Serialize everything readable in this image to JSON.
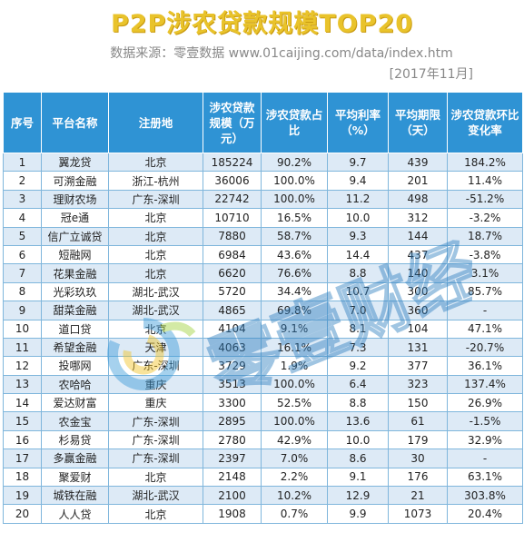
{
  "title": "P2P涉农贷款规模TOP20",
  "source": "数据来源：零壹数据 www.01caijing.com/data/index.htm",
  "date": "[2017年11月]",
  "columns": [
    "序号",
    "平台名称",
    "注册地",
    "涉农贷款规模（万元）",
    "涉农贷款占比",
    "平均利率（%）",
    "平均期限（天）",
    "涉农贷款环比变化率"
  ],
  "rows": [
    [
      "1",
      "翼龙贷",
      "北京",
      "185224",
      "90.2%",
      "9.7",
      "439",
      "184.2%"
    ],
    [
      "2",
      "可溯金融",
      "浙江-杭州",
      "36006",
      "100.0%",
      "9.4",
      "201",
      "11.4%"
    ],
    [
      "3",
      "理财农场",
      "广东-深圳",
      "22742",
      "100.0%",
      "11.2",
      "498",
      "-51.2%"
    ],
    [
      "4",
      "冠e通",
      "北京",
      "10710",
      "16.5%",
      "10.0",
      "312",
      "-3.2%"
    ],
    [
      "5",
      "信广立诚贷",
      "北京",
      "7880",
      "58.7%",
      "9.3",
      "144",
      "18.7%"
    ],
    [
      "6",
      "短融网",
      "北京",
      "6984",
      "43.6%",
      "14.4",
      "437",
      "-3.8%"
    ],
    [
      "7",
      "花果金融",
      "北京",
      "6620",
      "76.6%",
      "8.8",
      "140",
      "3.1%"
    ],
    [
      "8",
      "光彩玖玖",
      "湖北-武汉",
      "5720",
      "34.4%",
      "10.7",
      "300",
      "85.7%"
    ],
    [
      "9",
      "甜菜金融",
      "湖北-武汉",
      "4865",
      "69.8%",
      "7.0",
      "360",
      "-"
    ],
    [
      "10",
      "道口贷",
      "北京",
      "4104",
      "9.1%",
      "8.1",
      "104",
      "47.1%"
    ],
    [
      "11",
      "希望金融",
      "天津",
      "4063",
      "16.1%",
      "7.3",
      "131",
      "-20.7%"
    ],
    [
      "12",
      "投哪网",
      "广东-深圳",
      "3729",
      "1.9%",
      "9.2",
      "377",
      "36.1%"
    ],
    [
      "13",
      "农哈哈",
      "重庆",
      "3513",
      "100.0%",
      "6.4",
      "323",
      "137.4%"
    ],
    [
      "14",
      "爱达财富",
      "重庆",
      "3300",
      "52.5%",
      "8.8",
      "150",
      "26.9%"
    ],
    [
      "15",
      "农金宝",
      "广东-深圳",
      "2895",
      "100.0%",
      "13.6",
      "61",
      "-1.5%"
    ],
    [
      "16",
      "杉易贷",
      "广东-深圳",
      "2780",
      "42.9%",
      "10.0",
      "179",
      "32.9%"
    ],
    [
      "17",
      "多赢金融",
      "广东-深圳",
      "2397",
      "7.0%",
      "8.6",
      "30",
      "-"
    ],
    [
      "18",
      "聚爱财",
      "北京",
      "2148",
      "2.2%",
      "9.1",
      "176",
      "63.1%"
    ],
    [
      "19",
      "城铁在融",
      "湖北-武汉",
      "2100",
      "10.2%",
      "12.9",
      "21",
      "303.8%"
    ],
    [
      "20",
      "人人贷",
      "北京",
      "1908",
      "0.7%",
      "9.9",
      "1073",
      "20.4%"
    ]
  ],
  "watermark": {
    "text": "零壹财经",
    "logo_colors": [
      "#3a9ad9",
      "#9fd13a",
      "#f3c324"
    ],
    "text_color": "#2f7fc1"
  }
}
